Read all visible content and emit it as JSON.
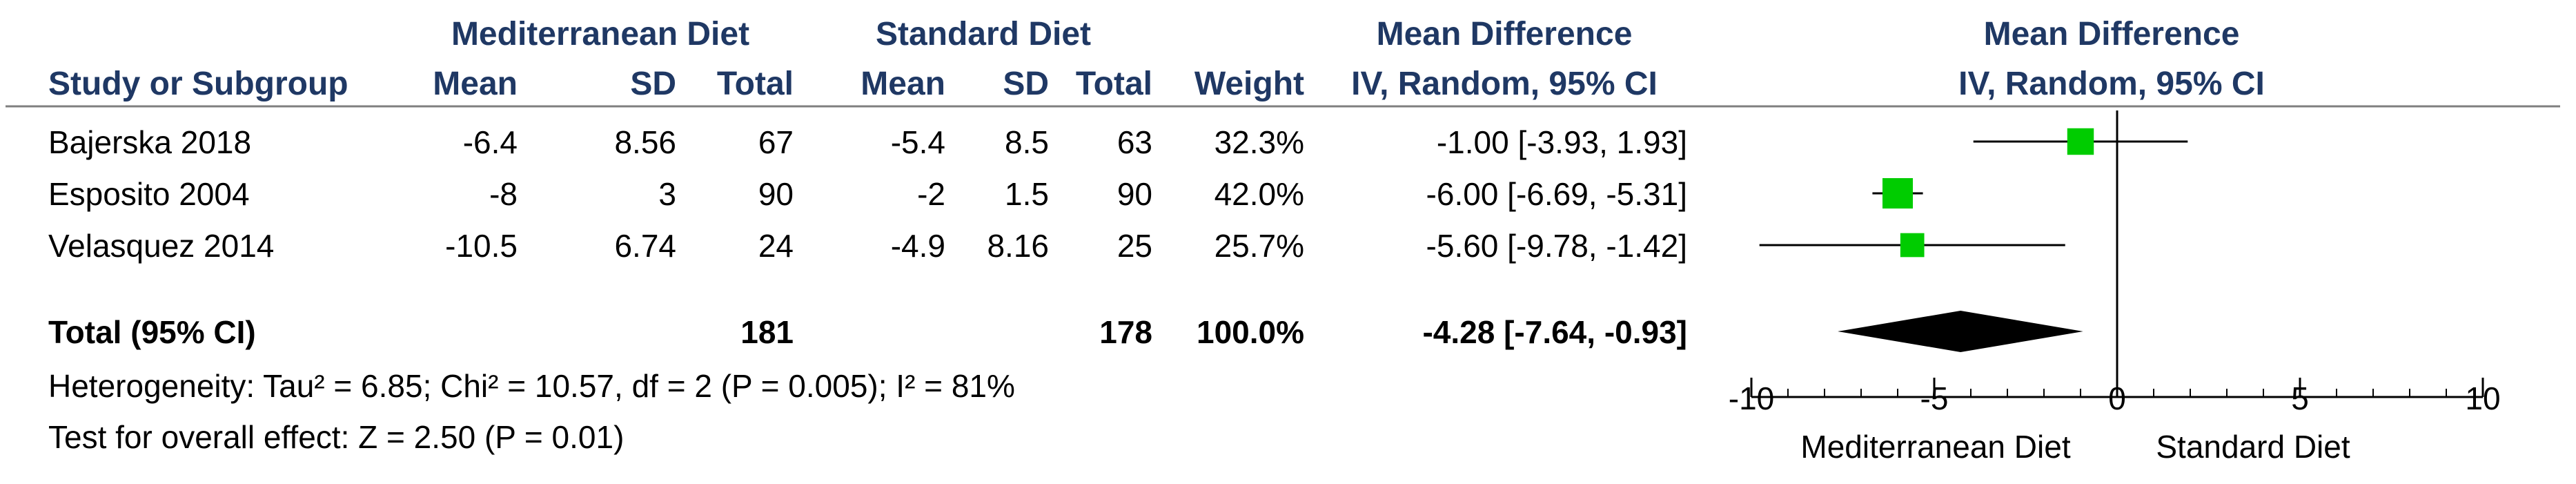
{
  "headers": {
    "group1": "Mediterranean Diet",
    "group2": "Standard Diet",
    "md_col": "Mean Difference",
    "md_sub": "IV, Random, 95% CI",
    "plot_title": "Mean Difference",
    "plot_sub": "IV, Random, 95% CI",
    "study": "Study or Subgroup",
    "mean1": "Mean",
    "sd1": "SD",
    "total1": "Total",
    "mean2": "Mean",
    "sd2": "SD",
    "total2": "Total",
    "weight": "Weight"
  },
  "studies": [
    {
      "name": "Bajerska 2018",
      "mean1": "-6.4",
      "sd1": "8.56",
      "total1": "67",
      "mean2": "-5.4",
      "sd2": "8.5",
      "total2": "63",
      "weight": "32.3%",
      "ci": "-1.00 [-3.93, 1.93]"
    },
    {
      "name": "Esposito 2004",
      "mean1": "-8",
      "sd1": "3",
      "total1": "90",
      "mean2": "-2",
      "sd2": "1.5",
      "total2": "90",
      "weight": "42.0%",
      "ci": "-6.00 [-6.69, -5.31]"
    },
    {
      "name": "Velasquez 2014",
      "mean1": "-10.5",
      "sd1": "6.74",
      "total1": "24",
      "mean2": "-4.9",
      "sd2": "8.16",
      "total2": "25",
      "weight": "25.7%",
      "ci": "-5.60 [-9.78, -1.42]"
    }
  ],
  "total": {
    "label": "Total (95% CI)",
    "total1": "181",
    "total2": "178",
    "weight": "100.0%",
    "ci": "-4.28 [-7.64, -0.93]"
  },
  "footer": {
    "heterogeneity": "Heterogeneity: Tau² = 6.85; Chi² = 10.57, df = 2 (P = 0.005); I² = 81%",
    "overall": "Test for overall effect: Z = 2.50 (P = 0.01)"
  },
  "chart_data": {
    "type": "forest",
    "x_ticks": [
      -10,
      -5,
      0,
      5,
      10
    ],
    "xlim": [
      -10,
      10
    ],
    "xlabel_left": "Mediterranean Diet",
    "xlabel_right": "Standard Diet",
    "studies": [
      {
        "name": "Bajerska 2018",
        "md": -1.0,
        "lo": -3.93,
        "hi": 1.93,
        "weight": 32.3
      },
      {
        "name": "Esposito 2004",
        "md": -6.0,
        "lo": -6.69,
        "hi": -5.31,
        "weight": 42.0
      },
      {
        "name": "Velasquez 2014",
        "md": -5.6,
        "lo": -9.78,
        "hi": -1.42,
        "weight": 25.7
      }
    ],
    "pooled": {
      "md": -4.28,
      "lo": -7.64,
      "hi": -0.93
    },
    "colors": {
      "square": "#00cc00",
      "diamond": "#000000"
    }
  }
}
